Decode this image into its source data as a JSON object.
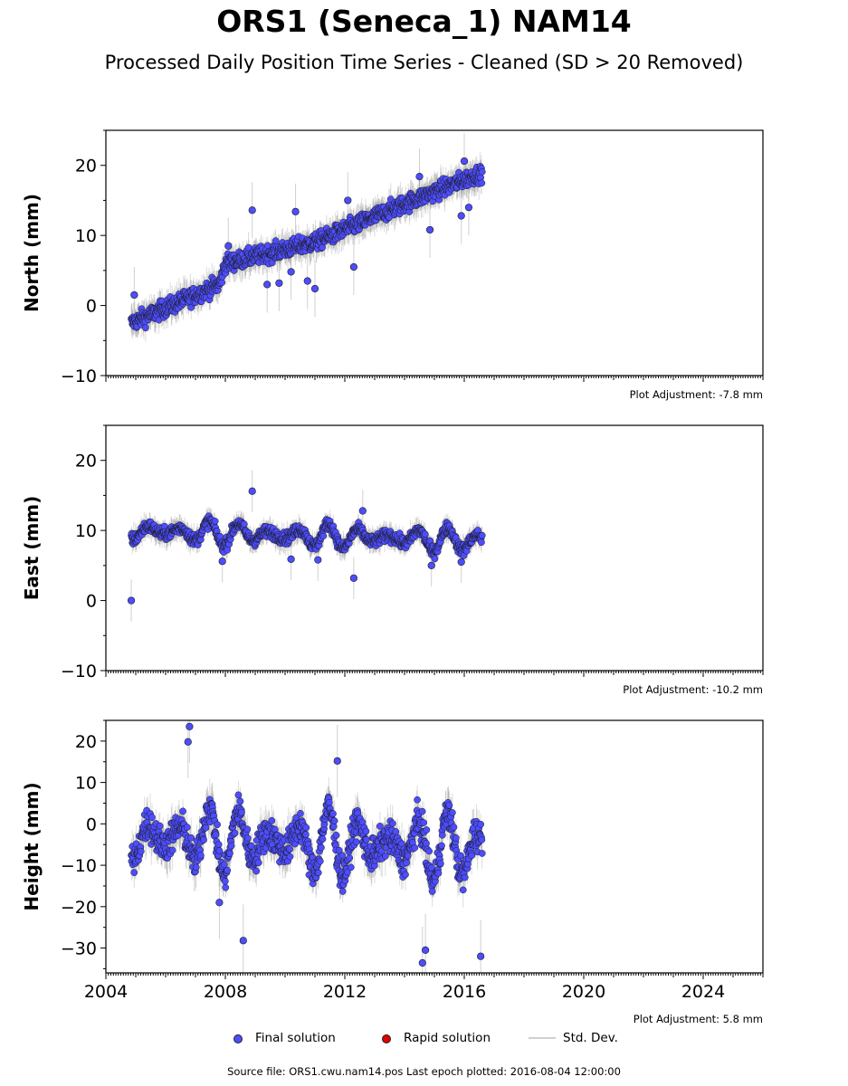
{
  "title": "ORS1 (Seneca_1) NAM14",
  "subtitle": "Processed Daily Position Time Series - Cleaned (SD > 20 Removed)",
  "colors": {
    "final": "#4d4dff",
    "rapid": "#e00000",
    "stddev": "#bdbdbd"
  },
  "legend": {
    "final": "Final solution",
    "rapid": "Rapid solution",
    "stddev": "Std. Dev."
  },
  "source": "Source file: ORS1.cwu.nam14.pos  Last epoch plotted: 2016-08-04 12:00:00",
  "chart_data": [
    {
      "type": "scatter",
      "ylabel": "North (mm)",
      "note": "Plot Adjustment: -7.8 mm",
      "xlim": [
        2004.0,
        2026.0
      ],
      "ylim": [
        -10,
        25
      ],
      "yticks": [
        -10,
        0,
        10,
        20
      ],
      "series": [
        {
          "trend": [
            [
              2004.85,
              -2.5
            ],
            [
              2007.8,
              3.0
            ],
            [
              2008.0,
              6.0
            ],
            [
              2011.0,
              9.0
            ],
            [
              2014.0,
              14.5
            ],
            [
              2016.6,
              19.0
            ]
          ],
          "noise": 1.3
        }
      ],
      "outliers": [
        [
          2004.95,
          1.5
        ],
        [
          2008.1,
          8.5
        ],
        [
          2008.9,
          13.6
        ],
        [
          2009.4,
          3.0
        ],
        [
          2009.8,
          3.2
        ],
        [
          2010.35,
          13.4
        ],
        [
          2010.2,
          4.8
        ],
        [
          2010.75,
          3.5
        ],
        [
          2011.0,
          2.4
        ],
        [
          2012.1,
          15.0
        ],
        [
          2012.3,
          5.5
        ],
        [
          2014.85,
          10.8
        ],
        [
          2014.5,
          18.4
        ],
        [
          2015.9,
          12.8
        ],
        [
          2016.15,
          14.0
        ],
        [
          2016.0,
          20.6
        ]
      ],
      "errorbar_sigma": 1.6
    },
    {
      "type": "scatter",
      "ylabel": "East (mm)",
      "note": "Plot Adjustment: -10.2 mm",
      "xlim": [
        2004.0,
        2026.0
      ],
      "ylim": [
        -10,
        25
      ],
      "yticks": [
        -10,
        0,
        10,
        20
      ],
      "series": [
        {
          "trend": [
            [
              2004.85,
              10.0
            ],
            [
              2016.6,
              8.5
            ]
          ],
          "seasonal_amp": 1.8,
          "noise": 0.9
        }
      ],
      "outliers": [
        [
          2004.85,
          0.0
        ],
        [
          2008.9,
          15.6
        ],
        [
          2007.9,
          5.6
        ],
        [
          2010.2,
          5.9
        ],
        [
          2011.1,
          5.8
        ],
        [
          2012.3,
          3.2
        ],
        [
          2012.6,
          12.8
        ],
        [
          2014.9,
          5.0
        ],
        [
          2015.9,
          5.5
        ]
      ],
      "errorbar_sigma": 1.2
    },
    {
      "type": "scatter",
      "ylabel": "Height (mm)",
      "note": "Plot Adjustment: 5.8 mm",
      "xlim": [
        2004.0,
        2026.0
      ],
      "ylim": [
        -36,
        25
      ],
      "yticks": [
        -30,
        -20,
        -10,
        0,
        10,
        20
      ],
      "series": [
        {
          "trend": [
            [
              2004.85,
              -3.0
            ],
            [
              2016.6,
              -6.0
            ]
          ],
          "seasonal_amp": 8.5,
          "noise": 4.2
        }
      ],
      "outliers": [
        [
          2006.8,
          23.5
        ],
        [
          2006.75,
          19.8
        ],
        [
          2007.8,
          -19.0
        ],
        [
          2008.6,
          -28.2
        ],
        [
          2011.75,
          15.2
        ],
        [
          2014.6,
          -33.6
        ],
        [
          2014.7,
          -30.5
        ],
        [
          2016.55,
          -32.0
        ]
      ],
      "errorbar_sigma": 3.5
    }
  ],
  "x_ticks": [
    2004,
    2008,
    2012,
    2016,
    2020,
    2024
  ]
}
